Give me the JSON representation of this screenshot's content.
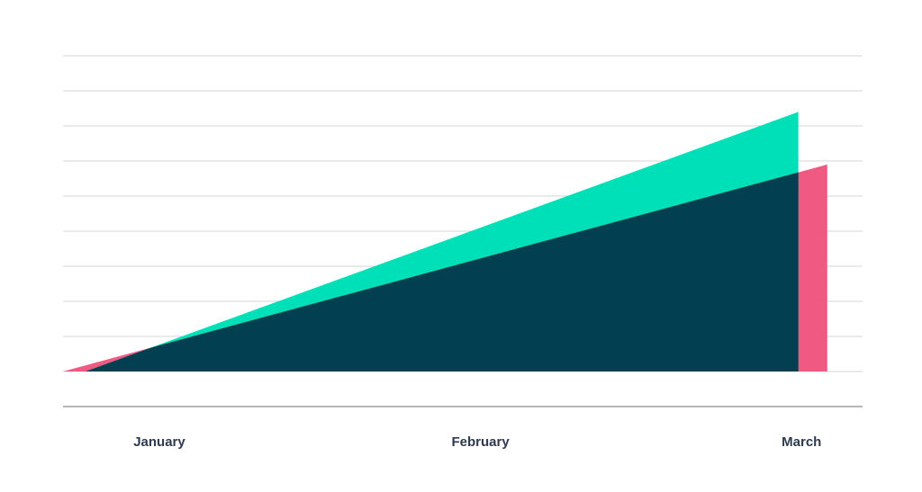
{
  "chart_data": {
    "type": "area",
    "xticks": [
      {
        "value": 0,
        "label": "January"
      },
      {
        "value": 1,
        "label": "February"
      },
      {
        "value": 2,
        "label": "March"
      }
    ],
    "xlim": [
      -0.3,
      2.19
    ],
    "ylim": [
      -1,
      9
    ],
    "yticks": [
      0,
      1,
      2,
      3,
      4,
      5,
      6,
      7,
      8,
      9
    ],
    "grid": true,
    "overlap_color": "#023f50",
    "series": [
      {
        "color": "#f05a82",
        "x": [
          -0.3,
          2.08,
          2.08
        ],
        "values": [
          0,
          5.9,
          0
        ]
      },
      {
        "color": "#00e0b8",
        "x": [
          -0.23,
          1.99,
          1.99
        ],
        "values": [
          0,
          7.4,
          0
        ]
      }
    ]
  }
}
